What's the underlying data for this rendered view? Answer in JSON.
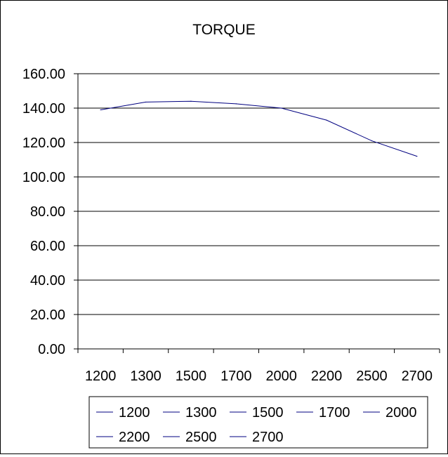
{
  "chart_data": {
    "type": "line",
    "title": "TORQUE",
    "xlabel": "",
    "ylabel": "",
    "categories": [
      "1200",
      "1300",
      "1500",
      "1700",
      "2000",
      "2200",
      "2500",
      "2700"
    ],
    "series": [
      {
        "name": "",
        "values": [
          139,
          143.5,
          144,
          142.5,
          140,
          133,
          121,
          112
        ]
      }
    ],
    "ylim": [
      0,
      160
    ],
    "y_ticks": [
      "0.00",
      "20.00",
      "40.00",
      "60.00",
      "80.00",
      "100.00",
      "120.00",
      "140.00",
      "160.00"
    ],
    "grid": "horizontal",
    "legend": {
      "placement": "bottom",
      "entries": [
        "1200",
        "1300",
        "1500",
        "1700",
        "2000",
        "2200",
        "2500",
        "2700"
      ]
    },
    "colors": {
      "line": "#000080",
      "grid": "#000000",
      "background": "#ffffff"
    }
  }
}
